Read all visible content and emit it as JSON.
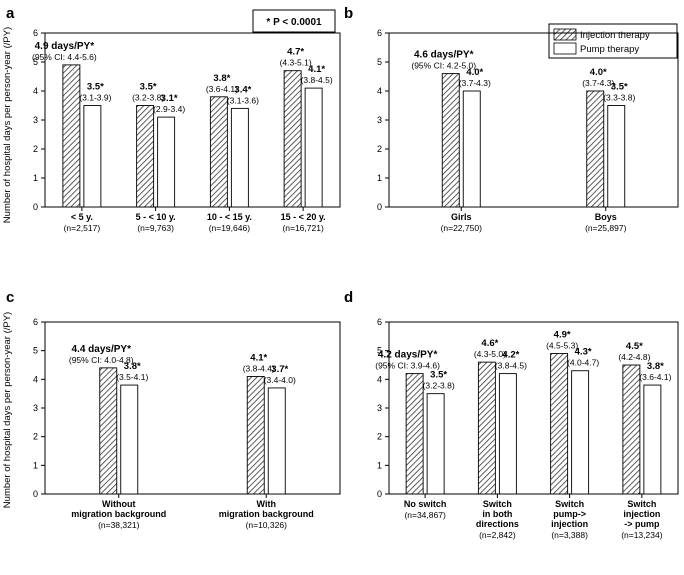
{
  "figure": {
    "ylabel": "Number of hospital days per person-year (/PY)",
    "significance": "* P < 0.0001",
    "legend": [
      "Injection therapy",
      "Pump therapy"
    ]
  },
  "chart_data": [
    {
      "panel": "a",
      "type": "bar",
      "ylim": [
        0,
        6
      ],
      "yticks": [
        0,
        1,
        2,
        3,
        4,
        5,
        6
      ],
      "categories": [
        "< 5 y.",
        "5 - < 10 y.",
        "10 - < 15 y.",
        "15 - < 20 y."
      ],
      "category_n": [
        "(n=2,517)",
        "(n=9,763)",
        "(n=19,646)",
        "(n=16,721)"
      ],
      "series": [
        {
          "name": "Injection therapy",
          "values": [
            4.9,
            3.5,
            3.8,
            4.7
          ],
          "labels": [
            "4.9 days/PY*",
            "3.5*",
            "3.8*",
            "4.7*"
          ],
          "ci": [
            "(95% CI: 4.4-5.6)",
            "(3.2-3.8)",
            "(3.6-4.1)",
            "(4.3-5.1)"
          ]
        },
        {
          "name": "Pump therapy",
          "values": [
            3.5,
            3.1,
            3.4,
            4.1
          ],
          "labels": [
            "3.5*",
            "3.1*",
            "3.4*",
            "4.1*"
          ],
          "ci": [
            "(3.1-3.9)",
            "(2.9-3.4)",
            "(3.1-3.6)",
            "(3.8-4.5)"
          ]
        }
      ]
    },
    {
      "panel": "b",
      "type": "bar",
      "ylim": [
        0,
        6
      ],
      "yticks": [
        0,
        1,
        2,
        3,
        4,
        5,
        6
      ],
      "categories": [
        "Girls",
        "Boys"
      ],
      "category_n": [
        "(n=22,750)",
        "(n=25,897)"
      ],
      "series": [
        {
          "name": "Injection therapy",
          "values": [
            4.6,
            4.0
          ],
          "labels": [
            "4.6 days/PY*",
            "4.0*"
          ],
          "ci": [
            "(95% CI: 4.2-5.0)",
            "(3.7-4.3)"
          ]
        },
        {
          "name": "Pump therapy",
          "values": [
            4.0,
            3.5
          ],
          "labels": [
            "4.0*",
            "3.5*"
          ],
          "ci": [
            "(3.7-4.3)",
            "(3.3-3.8)"
          ]
        }
      ]
    },
    {
      "panel": "c",
      "type": "bar",
      "ylim": [
        0,
        6
      ],
      "yticks": [
        0,
        1,
        2,
        3,
        4,
        5,
        6
      ],
      "categories": [
        "Without|migration background",
        "With|migration background"
      ],
      "category_n": [
        "(n=38,321)",
        "(n=10,326)"
      ],
      "series": [
        {
          "name": "Injection therapy",
          "values": [
            4.4,
            4.1
          ],
          "labels": [
            "4.4 days/PY*",
            "4.1*"
          ],
          "ci": [
            "(95% CI: 4.0-4.8)",
            "(3.8-4.4)"
          ]
        },
        {
          "name": "Pump therapy",
          "values": [
            3.8,
            3.7
          ],
          "labels": [
            "3.8*",
            "3.7*"
          ],
          "ci": [
            "(3.5-4.1)",
            "(3.4-4.0)"
          ]
        }
      ]
    },
    {
      "panel": "d",
      "type": "bar",
      "ylim": [
        0,
        6
      ],
      "yticks": [
        0,
        1,
        2,
        3,
        4,
        5,
        6
      ],
      "categories": [
        "No switch",
        "Switch|in both|directions",
        "Switch|pump->|injection",
        "Switch|injection|-> pump"
      ],
      "category_n": [
        "(n=34,867)",
        "(n=2,842)",
        "(n=3,388)",
        "(n=13,234)"
      ],
      "series": [
        {
          "name": "Injection therapy",
          "values": [
            4.2,
            4.6,
            4.9,
            4.5
          ],
          "labels": [
            "4.2 days/PY*",
            "4.6*",
            "4.9*",
            "4.5*"
          ],
          "ci": [
            "(95% CI: 3.9-4.6)",
            "(4.3-5.0)",
            "(4.5-5.3)",
            "(4.2-4.8)"
          ]
        },
        {
          "name": "Pump therapy",
          "values": [
            3.5,
            4.2,
            4.3,
            3.8
          ],
          "labels": [
            "3.5*",
            "4.2*",
            "4.3*",
            "3.8*"
          ],
          "ci": [
            "(3.2-3.8)",
            "(3.8-4.5)",
            "(4.0-4.7)",
            "(3.6-4.1)"
          ]
        }
      ]
    }
  ]
}
